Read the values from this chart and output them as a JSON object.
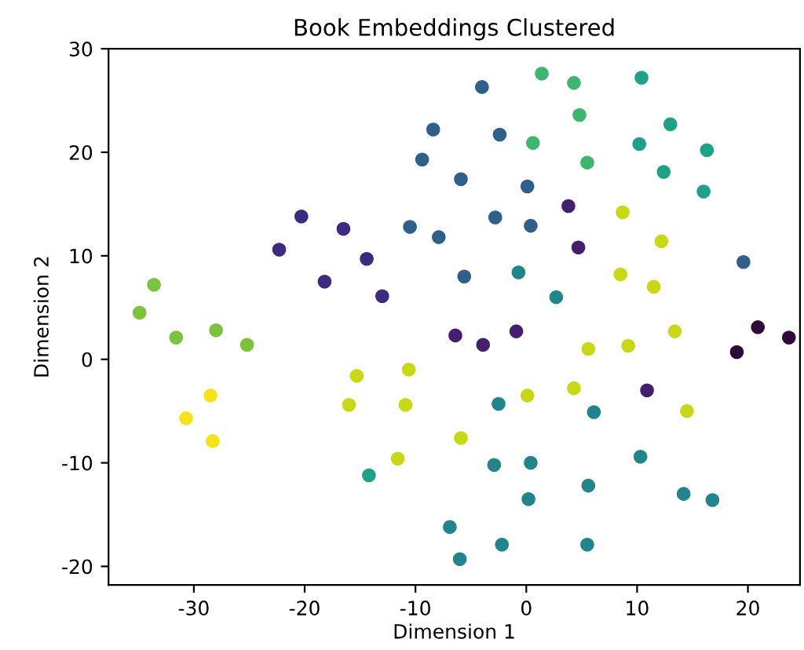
{
  "chart_data": {
    "type": "scatter",
    "title": "Book Embeddings Clustered",
    "xlabel": "Dimension 1",
    "ylabel": "Dimension 2",
    "marker": "circle",
    "grid": false,
    "xlim": [
      -37.7,
      24.7
    ],
    "ylim": [
      -21.8,
      30
    ],
    "xticks": [
      -30,
      -20,
      -10,
      0,
      10,
      20
    ],
    "yticks": [
      -20,
      -10,
      0,
      10,
      20,
      30
    ],
    "series": [
      {
        "color": "#300b3a",
        "x": [
          19.0,
          20.9,
          23.7
        ],
        "values": [
          0.7,
          3.1,
          2.1
        ]
      },
      {
        "color": "#3e2a7e",
        "x": [
          -22.3,
          -20.3,
          -18.2,
          -16.5,
          -14.4,
          -13.0
        ],
        "values": [
          10.6,
          13.8,
          7.5,
          12.6,
          9.7,
          6.1
        ]
      },
      {
        "color": "#43206e",
        "x": [
          -6.4,
          -3.9,
          -0.9,
          10.9,
          3.8,
          4.7
        ],
        "values": [
          2.3,
          1.4,
          2.7,
          -3.0,
          14.8,
          10.8
        ]
      },
      {
        "color": "#2f5f8a",
        "x": [
          -4.0,
          -8.4,
          -2.4,
          -9.4,
          -5.9,
          0.1,
          -2.8,
          0.4,
          -10.5,
          -7.9,
          -5.6,
          19.6
        ],
        "values": [
          26.3,
          22.2,
          21.7,
          19.3,
          17.4,
          16.7,
          13.7,
          12.9,
          12.8,
          11.8,
          8.0,
          9.4
        ]
      },
      {
        "color": "#22858c",
        "x": [
          -0.7,
          2.7,
          -2.5,
          6.1,
          10.3,
          -2.9,
          0.4,
          5.6,
          0.2,
          14.2,
          16.8,
          -6.9,
          -2.2,
          5.5,
          -6.0
        ],
        "values": [
          8.4,
          6.0,
          -4.3,
          -5.1,
          -9.4,
          -10.2,
          -10.0,
          -12.2,
          -13.5,
          -13.0,
          -13.6,
          -16.2,
          -17.9,
          -17.9,
          -19.3
        ]
      },
      {
        "color": "#1fa187",
        "x": [
          10.4,
          13.0,
          10.2,
          16.3,
          12.4,
          16.0,
          -14.2
        ],
        "values": [
          27.2,
          22.7,
          20.8,
          20.2,
          18.1,
          16.2,
          -11.2
        ]
      },
      {
        "color": "#3fb66f",
        "x": [
          1.4,
          4.3,
          4.8,
          0.6,
          5.5
        ],
        "values": [
          27.6,
          26.7,
          23.6,
          20.9,
          19.0
        ]
      },
      {
        "color": "#7cc23f",
        "x": [
          -33.6,
          -34.9,
          -31.6,
          -28.0,
          -25.2
        ],
        "values": [
          7.2,
          4.5,
          2.1,
          2.8,
          1.4
        ]
      },
      {
        "color": "#c8d818",
        "x": [
          8.7,
          12.2,
          8.5,
          11.5,
          13.4,
          5.6,
          9.2,
          -10.6,
          -10.9,
          0.1,
          4.3,
          14.5,
          -5.9,
          -11.6,
          -15.3,
          -16.0
        ],
        "values": [
          14.2,
          11.4,
          8.2,
          7.0,
          2.7,
          1.0,
          1.3,
          -1.0,
          -4.4,
          -3.5,
          -2.8,
          -5.0,
          -7.6,
          -9.6,
          -1.6,
          -4.4
        ]
      },
      {
        "color": "#f5e21a",
        "x": [
          -28.5,
          -30.7,
          -28.3
        ],
        "values": [
          -3.5,
          -5.7,
          -7.9
        ]
      }
    ]
  }
}
